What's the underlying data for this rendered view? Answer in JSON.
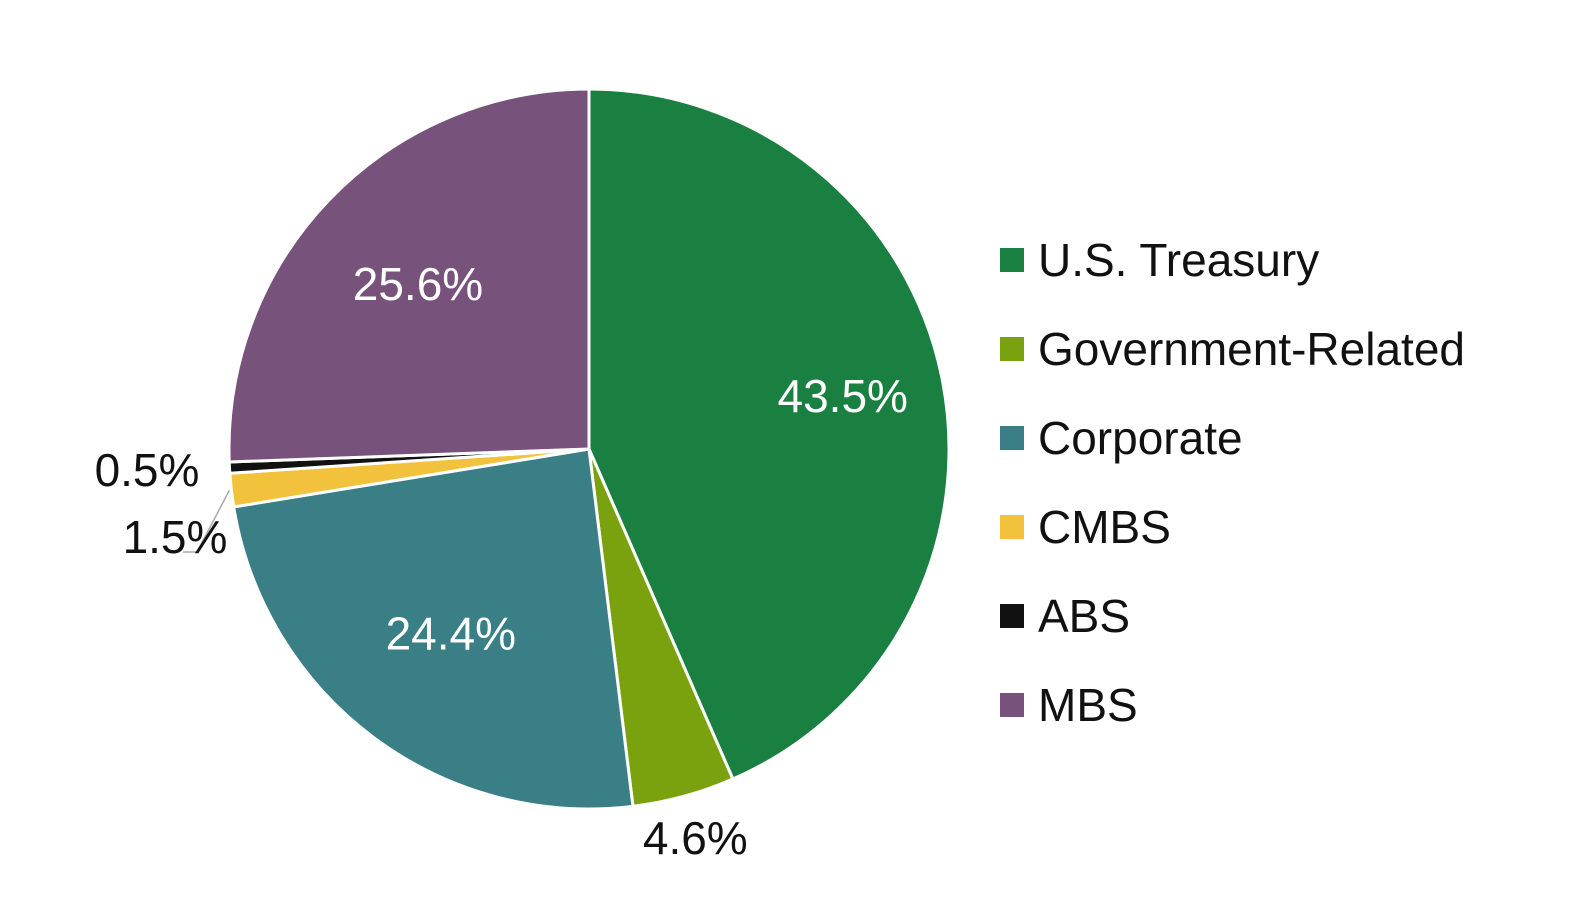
{
  "chart_data": {
    "type": "pie",
    "categories": [
      "U.S. Treasury",
      "Government-Related",
      "Corporate",
      "CMBS",
      "ABS",
      "MBS"
    ],
    "values": [
      43.5,
      4.6,
      24.4,
      1.5,
      0.5,
      25.6
    ],
    "labels": [
      "43.5%",
      "4.6%",
      "24.4%",
      "1.5%",
      "0.5%",
      "25.6%"
    ],
    "colors": [
      "#1a8042",
      "#7aa20f",
      "#3b7f86",
      "#f2c23c",
      "#111111",
      "#77527b"
    ],
    "label_colors": [
      "#ffffff",
      "#111111",
      "#ffffff",
      "#111111",
      "#111111",
      "#ffffff"
    ],
    "legend_position": "right",
    "title": "",
    "xlabel": "",
    "ylabel": ""
  }
}
